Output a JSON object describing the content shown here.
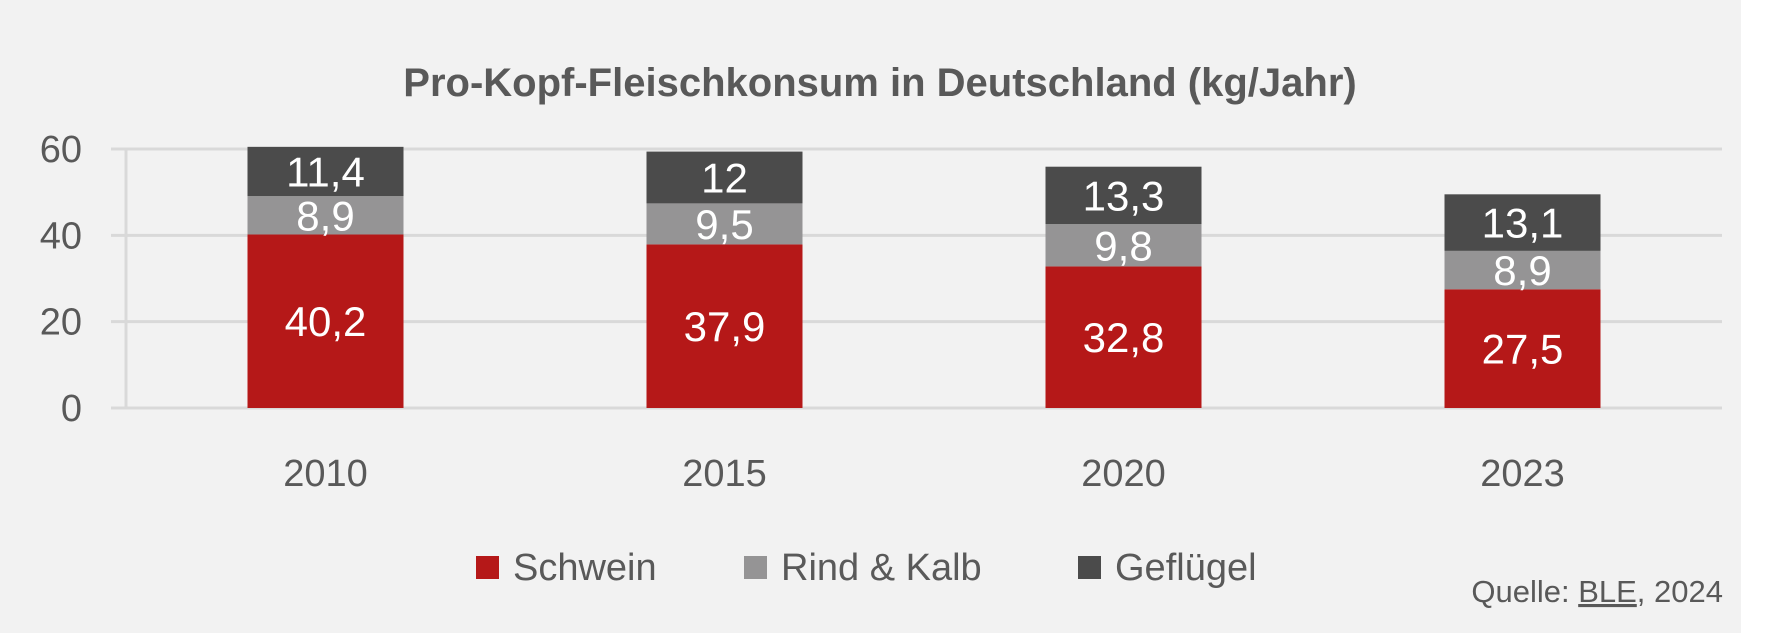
{
  "chart_data": {
    "type": "bar",
    "stacked": true,
    "title": "Pro-Kopf-Fleischkonsum in Deutschland (kg/Jahr)",
    "categories": [
      "2010",
      "2015",
      "2020",
      "2023"
    ],
    "series": [
      {
        "name": "Schwein",
        "color": "#b51818",
        "values": [
          40.2,
          37.9,
          32.8,
          27.5
        ],
        "labels": [
          "40,2",
          "37,9",
          "32,8",
          "27,5"
        ]
      },
      {
        "name": "Rind & Kalb",
        "color": "#959495",
        "values": [
          8.9,
          9.5,
          9.8,
          8.9
        ],
        "labels": [
          "8,9",
          "9,5",
          "9,8",
          "8,9"
        ]
      },
      {
        "name": "Geflügel",
        "color": "#4b4b4b",
        "values": [
          11.4,
          12,
          13.3,
          13.1
        ],
        "labels": [
          "11,4",
          "12",
          "13,3",
          "13,1"
        ]
      }
    ],
    "yticks": [
      "0",
      "20",
      "40",
      "60"
    ],
    "ylim": [
      0,
      60
    ],
    "grid": true,
    "xlabel": "",
    "ylabel": "",
    "legend": "bottom"
  },
  "source": {
    "prefix": "Quelle: ",
    "link": "BLE",
    "suffix": ", 2024"
  }
}
